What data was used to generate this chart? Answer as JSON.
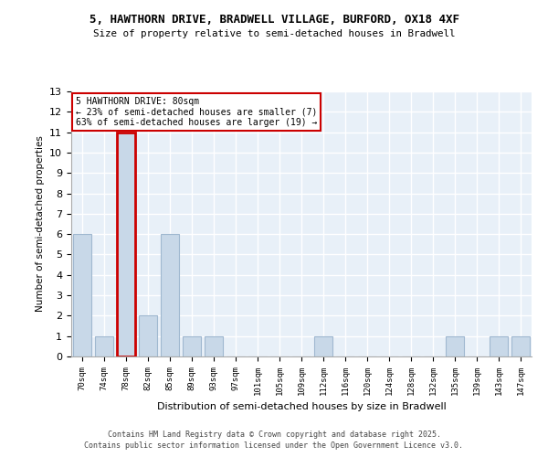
{
  "title1": "5, HAWTHORN DRIVE, BRADWELL VILLAGE, BURFORD, OX18 4XF",
  "title2": "Size of property relative to semi-detached houses in Bradwell",
  "xlabel": "Distribution of semi-detached houses by size in Bradwell",
  "ylabel": "Number of semi-detached properties",
  "categories": [
    "70sqm",
    "74sqm",
    "78sqm",
    "82sqm",
    "85sqm",
    "89sqm",
    "93sqm",
    "97sqm",
    "101sqm",
    "105sqm",
    "109sqm",
    "112sqm",
    "116sqm",
    "120sqm",
    "124sqm",
    "128sqm",
    "132sqm",
    "135sqm",
    "139sqm",
    "143sqm",
    "147sqm"
  ],
  "values": [
    6,
    1,
    11,
    2,
    6,
    1,
    1,
    0,
    0,
    0,
    0,
    1,
    0,
    0,
    0,
    0,
    0,
    1,
    0,
    1,
    1
  ],
  "bar_color": "#c8d8e8",
  "bar_edge_color": "#a0b8d0",
  "highlight_bar_index": 2,
  "highlight_edge_color": "#cc0000",
  "highlight_edge_width": 2.0,
  "annotation_text_line1": "5 HAWTHORN DRIVE: 80sqm",
  "annotation_text_line2": "← 23% of semi-detached houses are smaller (7)",
  "annotation_text_line3": "63% of semi-detached houses are larger (19) →",
  "ylim": [
    0,
    13
  ],
  "yticks": [
    0,
    1,
    2,
    3,
    4,
    5,
    6,
    7,
    8,
    9,
    10,
    11,
    12,
    13
  ],
  "bg_color": "#e8f0f8",
  "grid_color": "#ffffff",
  "footnote1": "Contains HM Land Registry data © Crown copyright and database right 2025.",
  "footnote2": "Contains public sector information licensed under the Open Government Licence v3.0."
}
